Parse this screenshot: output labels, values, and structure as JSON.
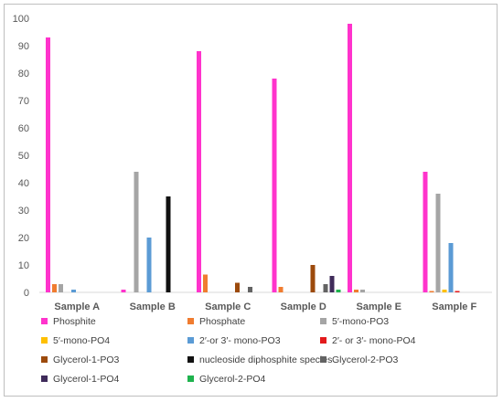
{
  "chart_data": {
    "type": "bar",
    "title": "",
    "xlabel": "",
    "ylabel": "",
    "ylim": [
      0,
      100
    ],
    "yticks": [
      0,
      10,
      20,
      30,
      40,
      50,
      60,
      70,
      80,
      90,
      100
    ],
    "grid": false,
    "legend_position": "bottom",
    "categories": [
      "Sample A",
      "Sample B",
      "Sample C",
      "Sample D",
      "Sample E",
      "Sample F"
    ],
    "series": [
      {
        "name": "Phosphite",
        "color": "#ff33cc",
        "values": [
          93,
          1,
          88,
          78,
          98,
          44
        ]
      },
      {
        "name": "Phosphate",
        "color": "#f07c30",
        "values": [
          3,
          0,
          6.5,
          2,
          1,
          0.5
        ]
      },
      {
        "name": "5′-mono-PO3",
        "color": "#a5a5a5",
        "values": [
          3,
          44,
          0,
          0,
          1,
          36
        ]
      },
      {
        "name": "5′-mono-PO4",
        "color": "#ffc000",
        "values": [
          0,
          0,
          0,
          0,
          0,
          1
        ]
      },
      {
        "name": "2′-or 3′- mono-PO3",
        "color": "#5b9bd5",
        "values": [
          1,
          20,
          0,
          0,
          0,
          18
        ]
      },
      {
        "name": "2′- or 3′- mono-PO4",
        "color": "#e31a1c",
        "values": [
          0,
          0,
          0,
          0,
          0,
          0.5
        ]
      },
      {
        "name": "Glycerol-1-PO3",
        "color": "#9c4a0c",
        "values": [
          0,
          0,
          3.5,
          10,
          0,
          0
        ]
      },
      {
        "name": "nucleoside diphosphite species",
        "color": "#111111",
        "values": [
          0,
          35,
          0,
          0,
          0,
          0
        ]
      },
      {
        "name": "Glycerol-2-PO3",
        "color": "#636363",
        "values": [
          0,
          0,
          2,
          3,
          0,
          0
        ]
      },
      {
        "name": "Glycerol-1-PO4",
        "color": "#3f2b5a",
        "values": [
          0,
          0,
          0,
          6,
          0,
          0
        ]
      },
      {
        "name": "Glycerol-2-PO4",
        "color": "#1fb34e",
        "values": [
          0,
          0,
          0,
          1,
          0,
          0
        ]
      }
    ]
  }
}
